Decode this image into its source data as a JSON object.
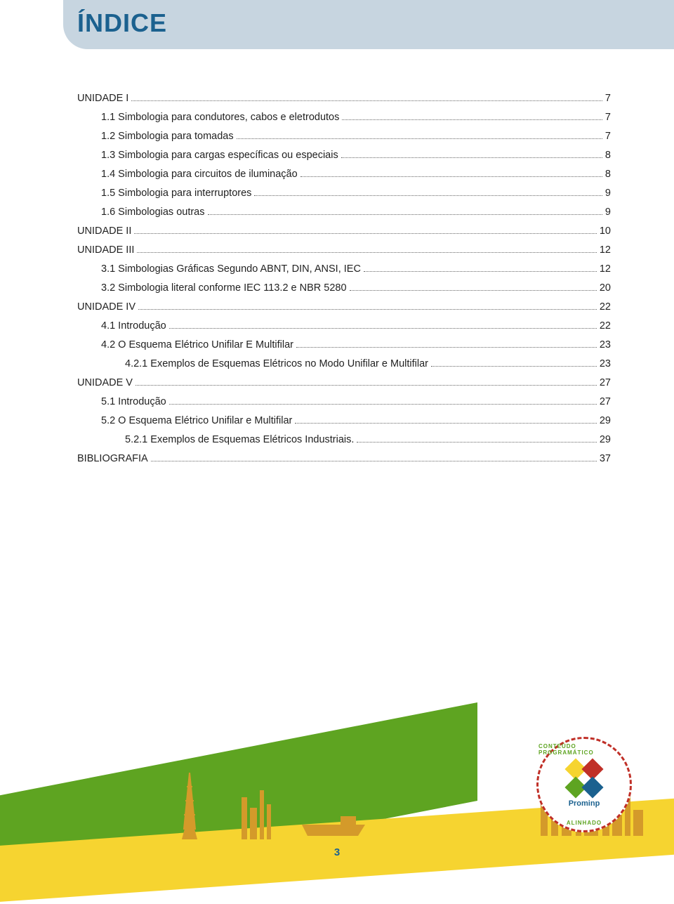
{
  "title": "ÍNDICE",
  "page_number": "3",
  "colors": {
    "header_bg": "#c7d5e0",
    "title_color": "#1b618f",
    "text_color": "#222222",
    "green_dark": "#5ea421",
    "green_light": "#8fc742",
    "yellow": "#f6d430",
    "badge_border": "#c03028"
  },
  "logo": {
    "text": "Prominp",
    "arc_top": "CONTEÚDO PROGRAMÁTICO",
    "arc_bottom": "ALINHADO",
    "diamond_colors": [
      "#f6d430",
      "#c03028",
      "#5ea421",
      "#1b618f"
    ]
  },
  "toc": [
    {
      "label": "UNIDADE I",
      "page": "7",
      "indent": 0
    },
    {
      "label": "1.1 Simbologia para condutores, cabos e eletrodutos",
      "page": "7",
      "indent": 1
    },
    {
      "label": "1.2 Simbologia para tomadas",
      "page": "7",
      "indent": 1
    },
    {
      "label": "1.3 Simbologia para cargas específicas ou especiais",
      "page": "8",
      "indent": 1
    },
    {
      "label": "1.4 Simbologia para circuitos de iluminação",
      "page": "8",
      "indent": 1
    },
    {
      "label": "1.5 Simbologia para interruptores",
      "page": "9",
      "indent": 1
    },
    {
      "label": "1.6 Simbologias outras",
      "page": "9",
      "indent": 1
    },
    {
      "label": "UNIDADE II",
      "page": "10",
      "indent": 0
    },
    {
      "label": "UNIDADE III",
      "page": "12",
      "indent": 0
    },
    {
      "label": "3.1 Simbologias Gráficas Segundo ABNT, DIN, ANSI, IEC",
      "page": "12",
      "indent": 1
    },
    {
      "label": "3.2 Simbologia literal conforme IEC 113.2 e NBR 5280",
      "page": "20",
      "indent": 1
    },
    {
      "label": "UNIDADE IV",
      "page": "22",
      "indent": 0
    },
    {
      "label": "4.1 Introdução",
      "page": "22",
      "indent": 1
    },
    {
      "label": "4.2 O Esquema Elétrico Unifilar E Multifilar",
      "page": "23",
      "indent": 1
    },
    {
      "label": "4.2.1 Exemplos de Esquemas Elétricos no Modo Unifilar e Multifilar",
      "page": "23",
      "indent": 2
    },
    {
      "label": "UNIDADE V",
      "page": "27",
      "indent": 0
    },
    {
      "label": "5.1 Introdução",
      "page": "27",
      "indent": 1
    },
    {
      "label": "5.2 O Esquema Elétrico Unifilar e Multifilar",
      "page": "29",
      "indent": 1
    },
    {
      "label": "5.2.1 Exemplos de Esquemas Elétricos Industriais.",
      "page": "29",
      "indent": 2
    },
    {
      "label": "BIBLIOGRAFIA",
      "page": "37",
      "indent": 0
    }
  ]
}
